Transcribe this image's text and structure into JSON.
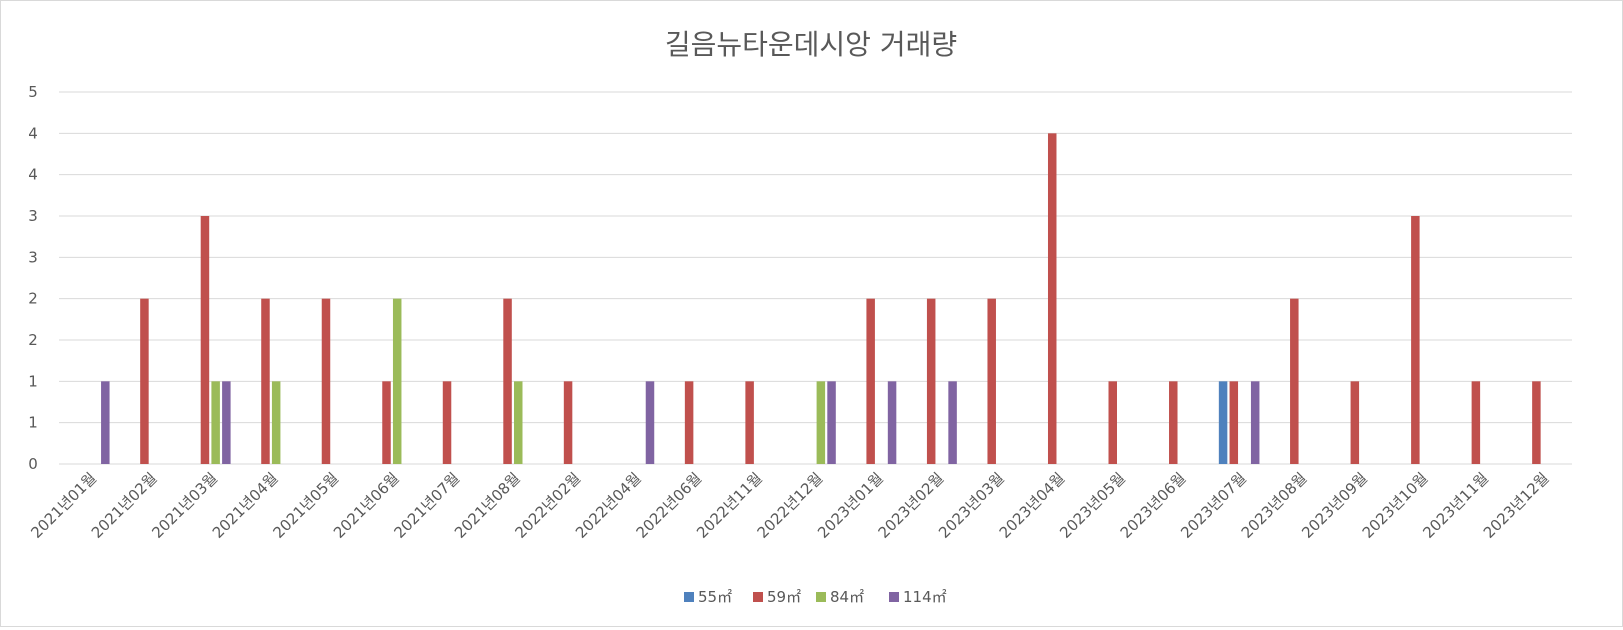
{
  "chart_data": {
    "type": "bar",
    "title": "길음뉴타운데시앙 거래량",
    "xlabel": "",
    "ylabel": "",
    "ylim": [
      0,
      4.5
    ],
    "y_tick_values": [
      0,
      0.5,
      1,
      1.5,
      2,
      2.5,
      3,
      3.5,
      4,
      4.5
    ],
    "y_tick_labels": [
      "0",
      "1",
      "1",
      "2",
      "2",
      "3",
      "3",
      "4",
      "4",
      "5"
    ],
    "grid": true,
    "legend_position": "bottom",
    "categories": [
      "2021년01월",
      "2021년02월",
      "2021년03월",
      "2021년04월",
      "2021년05월",
      "2021년06월",
      "2021년07월",
      "2021년08월",
      "2022년02월",
      "2022년04월",
      "2022년06월",
      "2022년11월",
      "2022년12월",
      "2023년01월",
      "2023년02월",
      "2023년03월",
      "2023년04월",
      "2023년05월",
      "2023년06월",
      "2023년07월",
      "2023년08월",
      "2023년09월",
      "2023년10월",
      "2023년11월",
      "2023년12월"
    ],
    "series": [
      {
        "name": "55㎡",
        "color": "#4f81bd",
        "values": [
          0,
          0,
          0,
          0,
          0,
          0,
          0,
          0,
          0,
          0,
          0,
          0,
          0,
          0,
          0,
          0,
          0,
          0,
          0,
          1,
          0,
          0,
          0,
          0,
          0
        ]
      },
      {
        "name": "59㎡",
        "color": "#c0504d",
        "values": [
          0,
          2,
          3,
          2,
          2,
          1,
          1,
          2,
          1,
          0,
          1,
          1,
          0,
          2,
          2,
          2,
          4,
          1,
          1,
          1,
          2,
          1,
          3,
          1,
          1
        ]
      },
      {
        "name": "84㎡",
        "color": "#9bbb59",
        "values": [
          0,
          0,
          1,
          1,
          0,
          2,
          0,
          1,
          0,
          0,
          0,
          0,
          1,
          0,
          0,
          0,
          0,
          0,
          0,
          0,
          0,
          0,
          0,
          0,
          0
        ]
      },
      {
        "name": "114㎡",
        "color": "#8064a2",
        "values": [
          1,
          0,
          1,
          0,
          0,
          0,
          0,
          0,
          0,
          1,
          0,
          0,
          1,
          1,
          1,
          0,
          0,
          0,
          0,
          1,
          0,
          0,
          0,
          0,
          0
        ]
      }
    ]
  }
}
